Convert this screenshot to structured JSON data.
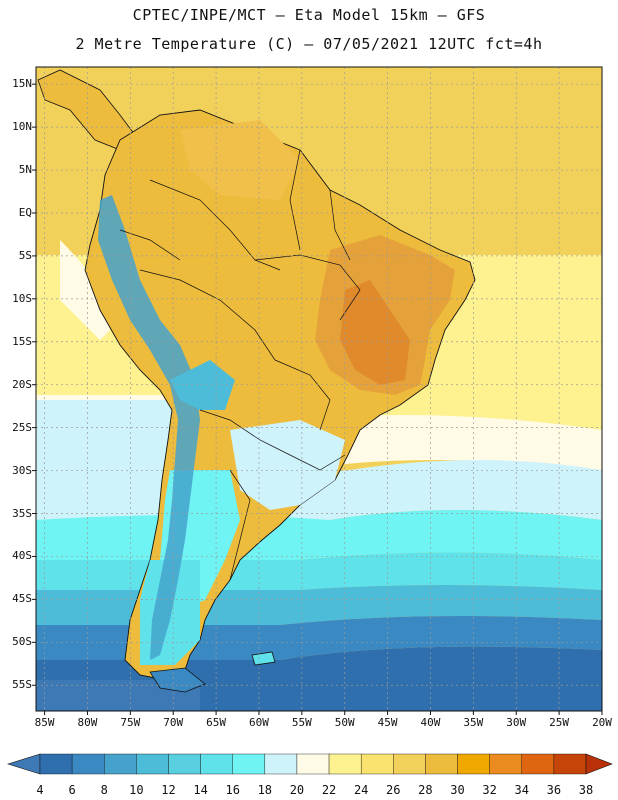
{
  "header": {
    "line1": "CPTEC/INPE/MCT –  Eta Model 15km – GFS",
    "line2": "2 Metre Temperature (C) – 07/05/2021 12UTC fct=4h"
  },
  "map": {
    "lat_labels": [
      "15N",
      "10N",
      "5N",
      "EQ",
      "5S",
      "10S",
      "15S",
      "20S",
      "25S",
      "30S",
      "35S",
      "40S",
      "45S",
      "50S",
      "55S"
    ],
    "lon_labels": [
      "85W",
      "80W",
      "75W",
      "70W",
      "65W",
      "60W",
      "55W",
      "50W",
      "45W",
      "40W",
      "35W",
      "30W",
      "25W",
      "20W"
    ],
    "lat_values": [
      15,
      10,
      5,
      0,
      -5,
      -10,
      -15,
      -20,
      -25,
      -30,
      -35,
      -40,
      -45,
      -50,
      -55
    ],
    "lon_values": [
      -85,
      -80,
      -75,
      -70,
      -65,
      -60,
      -55,
      -50,
      -45,
      -40,
      -35,
      -30,
      -25,
      -20
    ],
    "bounds": {
      "lon_min": -86,
      "lon_max": -20,
      "lat_min": -58,
      "lat_max": 17
    }
  },
  "colorbar": {
    "levels": [
      "4",
      "6",
      "8",
      "10",
      "12",
      "14",
      "16",
      "18",
      "20",
      "22",
      "24",
      "26",
      "28",
      "30",
      "32",
      "34",
      "36",
      "38"
    ],
    "colors": [
      "#3d79b4",
      "#2f6fad",
      "#3b89c2",
      "#45a2cc",
      "#4dbcd8",
      "#59cfe0",
      "#5fe2ea",
      "#6ff3f3",
      "#cff3fb",
      "#fffbe6",
      "#fdf28f",
      "#f9e36e",
      "#f2d15a",
      "#eebc3c",
      "#f0a800",
      "#eb8a1e",
      "#e06511",
      "#c64408",
      "#b83108"
    ],
    "min_color": "#3d79b4",
    "max_color": "#b83108"
  },
  "palette": {
    "ocean_north": "#f2d15a",
    "ocean_mid": "#fdf28f",
    "ocean_cool": "#cff3fb",
    "ocean_cold": "#5fe2ea",
    "ocean_colder": "#45a2cc",
    "ocean_coldest": "#2f6fad",
    "land_hot": "#eebc3c",
    "land_warm": "#f2d15a",
    "land_hottest": "#e06511",
    "andes": "#45a2cc",
    "border": "#111111"
  }
}
